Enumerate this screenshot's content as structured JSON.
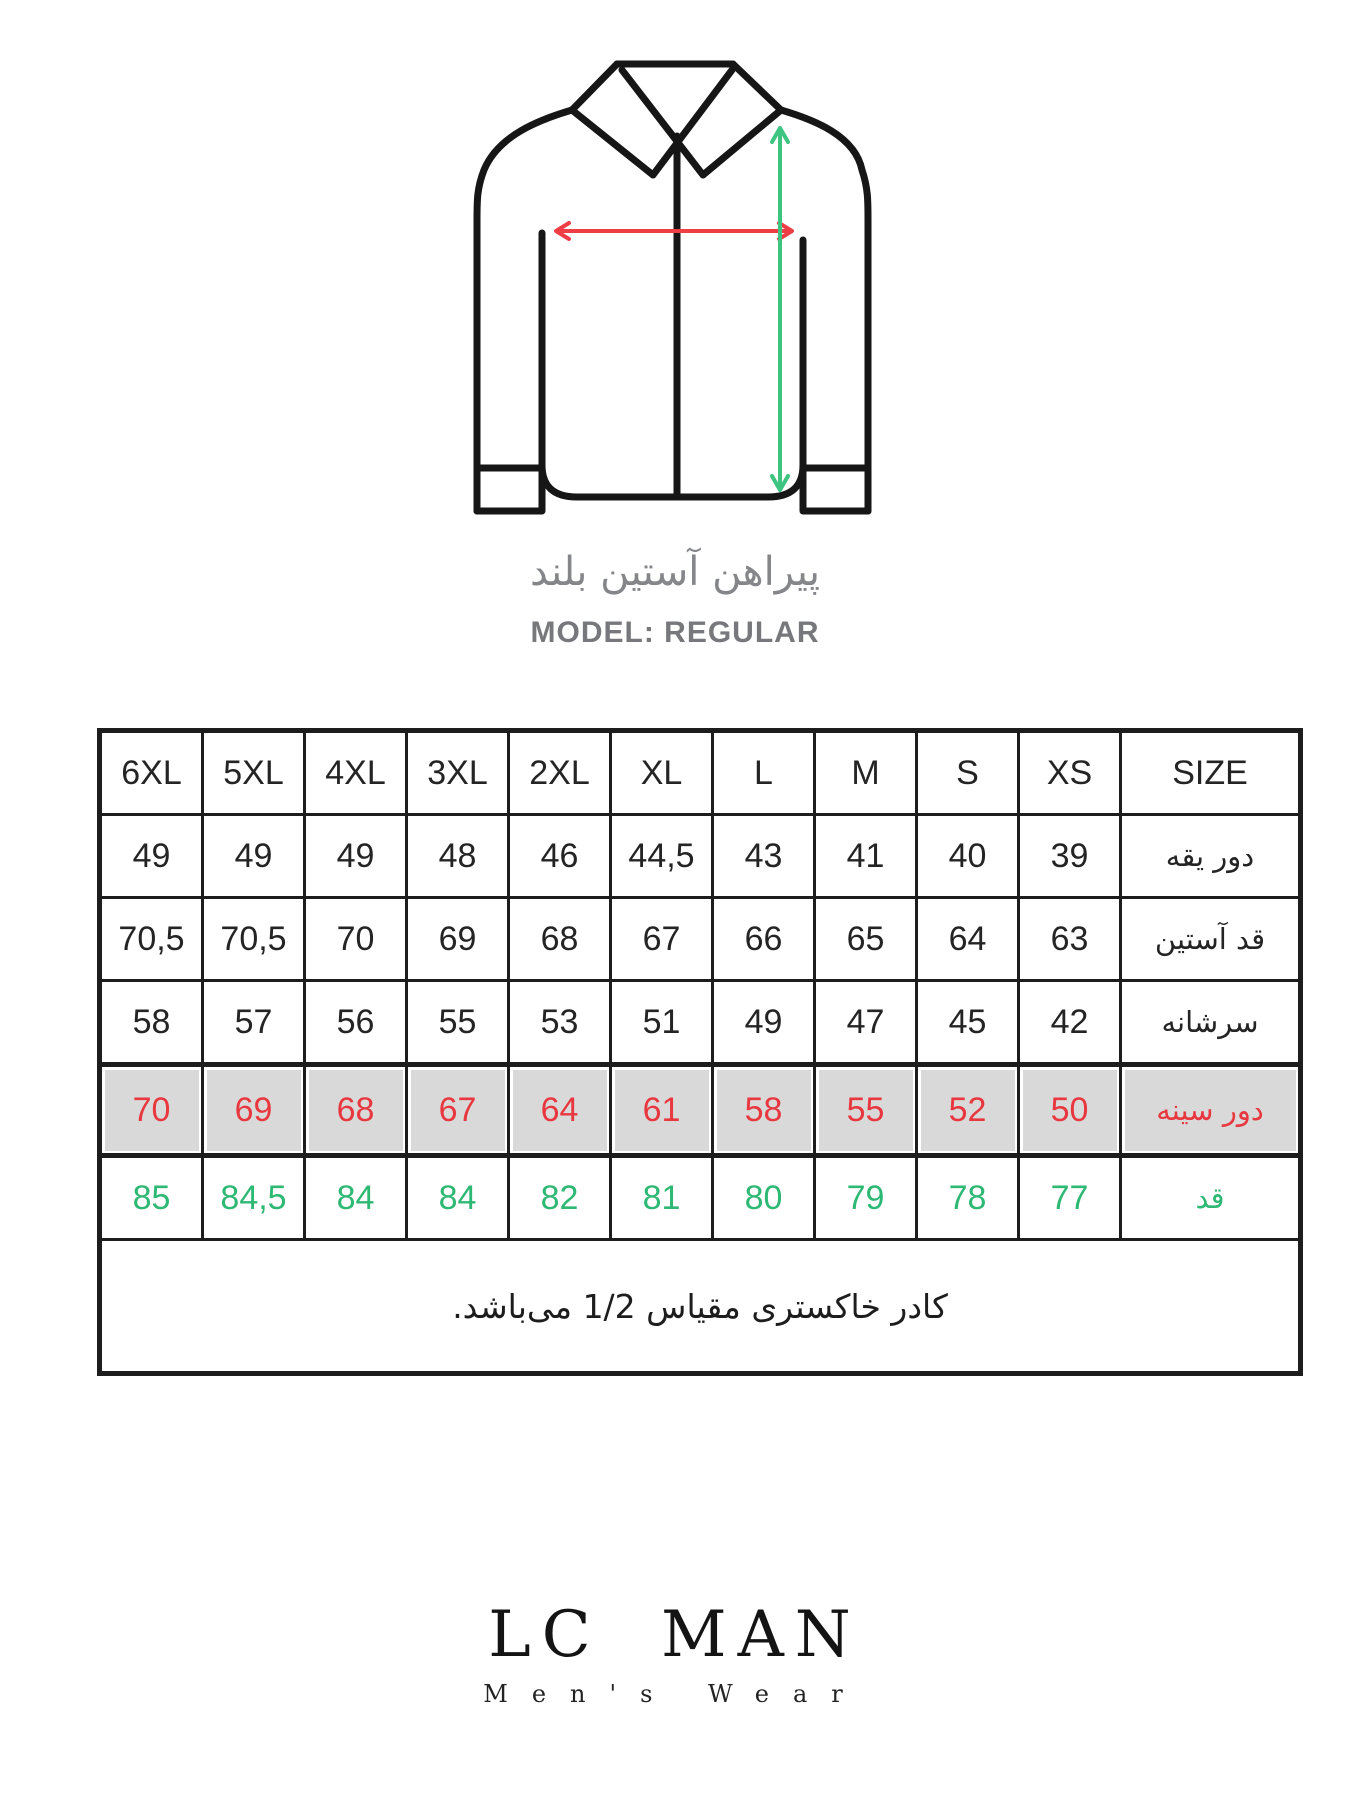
{
  "diagram": {
    "caption_fa": "پیراهن آستین بلند",
    "model_label": "MODEL: REGULAR",
    "outline_color": "#161616",
    "chest_arrow_color": "#ee3d45",
    "length_arrow_color": "#3cc480",
    "caption_color": "#85868a",
    "model_color": "#77787b"
  },
  "size_table": {
    "header": [
      "6XL",
      "5XL",
      "4XL",
      "3XL",
      "2XL",
      "XL",
      "L",
      "M",
      "S",
      "XS",
      "SIZE"
    ],
    "rows": [
      {
        "label": "دور یقه",
        "variant": "default",
        "values": [
          "49",
          "49",
          "49",
          "48",
          "46",
          "44,5",
          "43",
          "41",
          "40",
          "39"
        ]
      },
      {
        "label": "قد آستین",
        "variant": "default",
        "values": [
          "70,5",
          "70,5",
          "70",
          "69",
          "68",
          "67",
          "66",
          "65",
          "64",
          "63"
        ]
      },
      {
        "label": "سرشانه",
        "variant": "default",
        "values": [
          "58",
          "57",
          "56",
          "55",
          "53",
          "51",
          "49",
          "47",
          "45",
          "42"
        ]
      },
      {
        "label": "دور سینه",
        "variant": "chest",
        "values": [
          "70",
          "69",
          "68",
          "67",
          "64",
          "61",
          "58",
          "55",
          "52",
          "50"
        ]
      },
      {
        "label": "قد",
        "variant": "length",
        "values": [
          "85",
          "84,5",
          "84",
          "84",
          "82",
          "81",
          "80",
          "79",
          "78",
          "77"
        ]
      }
    ],
    "note": "کادر خاکستری مقیاس 1/2 می‌باشد.",
    "colors": {
      "border": "#1d1d1d",
      "cell_text": "#242424",
      "chest_bg": "#d9d9d9",
      "chest_text": "#e8373e",
      "length_text": "#2db873"
    }
  },
  "brand": {
    "logo": "LC MAN",
    "tagline": "Men's Wear"
  }
}
